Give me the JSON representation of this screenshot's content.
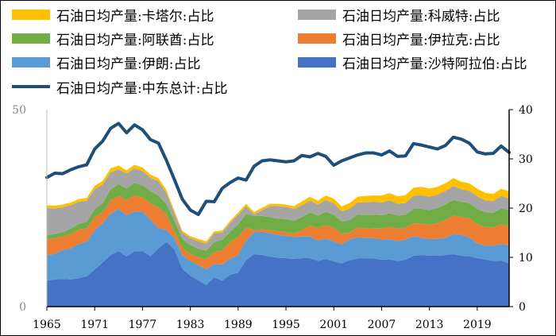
{
  "chart_data": {
    "type": "area",
    "stacked": true,
    "title": "",
    "xlabel": "",
    "ylabel": "",
    "x": [
      1965,
      1966,
      1967,
      1968,
      1969,
      1970,
      1971,
      1972,
      1973,
      1974,
      1975,
      1976,
      1977,
      1978,
      1979,
      1980,
      1981,
      1982,
      1983,
      1984,
      1985,
      1986,
      1987,
      1988,
      1989,
      1990,
      1991,
      1992,
      1993,
      1994,
      1995,
      1996,
      1997,
      1998,
      1999,
      2000,
      2001,
      2002,
      2003,
      2004,
      2005,
      2006,
      2007,
      2008,
      2009,
      2010,
      2011,
      2012,
      2013,
      2014,
      2015,
      2016,
      2017,
      2018,
      2019,
      2020,
      2021,
      2022,
      2023
    ],
    "x_ticks": [
      "1965",
      "1971",
      "1977",
      "1983",
      "1989",
      "1995",
      "2001",
      "2007",
      "2013",
      "2019"
    ],
    "y_left": {
      "range": [
        0,
        50
      ],
      "ticks": [
        "0",
        "50"
      ]
    },
    "y_right": {
      "range": [
        0,
        40
      ],
      "ticks": [
        "0",
        "10",
        "20",
        "30",
        "40"
      ]
    },
    "grid": false,
    "legend_position": "top",
    "series": [
      {
        "name": "石油日均产量:沙特阿拉伯:占比",
        "color": "#4472c4",
        "axis": "left",
        "values": [
          6.6,
          6.9,
          7.0,
          6.9,
          7.2,
          7.7,
          9.4,
          11.2,
          13.1,
          14.1,
          12.7,
          14.0,
          14.1,
          12.8,
          14.8,
          16.4,
          14.5,
          9.6,
          7.8,
          6.7,
          5.5,
          7.4,
          6.6,
          8.1,
          8.6,
          11.8,
          13.3,
          13.1,
          12.7,
          12.4,
          12.3,
          12.1,
          12.3,
          12.3,
          11.6,
          12.1,
          11.5,
          11.0,
          11.8,
          12.2,
          12.2,
          12.2,
          11.9,
          12.0,
          11.6,
          11.9,
          12.9,
          13.1,
          12.9,
          12.9,
          13.1,
          13.3,
          12.9,
          12.8,
          12.3,
          12.0,
          11.6,
          11.7,
          11.0
        ]
      },
      {
        "name": "石油日均产量:伊朗:占比",
        "color": "#5b9bd5",
        "axis": "left",
        "values": [
          6.4,
          6.5,
          7.4,
          7.9,
          8.7,
          8.8,
          10.0,
          10.0,
          10.5,
          10.7,
          10.5,
          10.2,
          10.0,
          9.3,
          5.1,
          3.0,
          2.9,
          3.5,
          3.8,
          3.8,
          4.0,
          3.4,
          4.1,
          4.0,
          4.5,
          5.0,
          5.6,
          5.9,
          5.9,
          5.8,
          5.7,
          5.6,
          5.5,
          5.5,
          5.2,
          5.2,
          5.1,
          4.8,
          5.3,
          5.4,
          5.3,
          5.2,
          5.1,
          5.1,
          5.0,
          5.1,
          5.0,
          4.4,
          4.2,
          4.3,
          4.4,
          5.1,
          5.3,
          4.8,
          3.7,
          3.5,
          3.9,
          4.2,
          4.5
        ]
      },
      {
        "name": "石油日均产量:伊拉克:占比",
        "color": "#ed7d31",
        "axis": "left",
        "values": [
          4.1,
          4.0,
          3.4,
          3.7,
          3.6,
          3.3,
          3.3,
          2.8,
          3.4,
          3.3,
          3.9,
          4.0,
          3.6,
          4.2,
          5.2,
          4.0,
          1.8,
          1.8,
          1.8,
          2.0,
          2.6,
          3.0,
          3.6,
          4.3,
          4.6,
          3.3,
          0.5,
          0.6,
          0.8,
          0.9,
          0.9,
          0.9,
          1.6,
          2.8,
          3.2,
          3.4,
          3.4,
          2.7,
          1.7,
          2.5,
          2.4,
          2.4,
          2.8,
          3.1,
          3.2,
          3.0,
          3.3,
          3.6,
          3.7,
          4.0,
          4.5,
          4.7,
          4.6,
          4.8,
          5.0,
          4.7,
          4.6,
          5.0,
          5.0
        ]
      },
      {
        "name": "石油日均产量:阿联酋:占比",
        "color": "#70ad47",
        "axis": "left",
        "values": [
          1.0,
          1.0,
          1.1,
          1.3,
          1.5,
          1.7,
          2.1,
          2.2,
          2.8,
          3.0,
          2.9,
          3.2,
          3.1,
          3.0,
          3.1,
          2.7,
          2.6,
          2.3,
          2.2,
          2.2,
          2.1,
          2.6,
          2.6,
          2.6,
          3.2,
          3.4,
          3.6,
          3.4,
          3.3,
          3.2,
          3.3,
          3.2,
          3.3,
          3.3,
          3.1,
          3.4,
          3.3,
          3.1,
          3.2,
          3.3,
          3.4,
          3.5,
          3.4,
          3.5,
          3.3,
          3.3,
          3.6,
          3.7,
          3.7,
          3.8,
          3.9,
          4.0,
          3.8,
          3.8,
          3.8,
          3.8,
          3.7,
          4.0,
          4.0
        ]
      },
      {
        "name": "石油日均产量:科威特:占比",
        "color": "#a5a5a5",
        "axis": "left",
        "values": [
          6.9,
          6.5,
          6.3,
          5.9,
          5.6,
          5.4,
          5.0,
          4.8,
          4.3,
          3.7,
          3.8,
          3.7,
          3.6,
          3.4,
          3.6,
          2.7,
          1.9,
          1.5,
          1.8,
          1.9,
          1.8,
          2.2,
          1.9,
          2.3,
          2.4,
          2.0,
          0.4,
          1.5,
          2.8,
          3.2,
          3.1,
          3.0,
          3.0,
          3.0,
          2.8,
          3.0,
          2.9,
          2.6,
          2.9,
          3.0,
          3.2,
          3.3,
          3.2,
          3.3,
          3.0,
          3.0,
          3.3,
          3.5,
          3.4,
          3.4,
          3.4,
          3.5,
          3.2,
          3.2,
          3.2,
          3.0,
          3.0,
          3.2,
          3.0
        ]
      },
      {
        "name": "石油日均产量:卡塔尔:占比",
        "color": "#ffc000",
        "axis": "left",
        "values": [
          0.7,
          0.7,
          0.7,
          0.7,
          0.7,
          0.7,
          0.9,
          0.9,
          1.0,
          1.0,
          0.8,
          0.9,
          0.9,
          0.8,
          0.8,
          0.8,
          0.6,
          0.5,
          0.5,
          0.6,
          0.6,
          0.5,
          0.5,
          0.5,
          0.6,
          0.6,
          0.6,
          0.6,
          0.6,
          0.6,
          0.6,
          0.7,
          1.0,
          1.0,
          1.0,
          1.1,
          1.2,
          1.2,
          1.4,
          1.5,
          1.6,
          1.6,
          1.8,
          1.8,
          1.9,
          2.0,
          2.1,
          2.1,
          2.1,
          2.0,
          2.0,
          2.0,
          1.9,
          1.9,
          1.9,
          1.9,
          1.8,
          1.8,
          1.8
        ]
      },
      {
        "name": "石油日均产量:中东总计:占比",
        "color": "#1f4e79",
        "axis": "right",
        "style": "line",
        "values": [
          26.2,
          27.1,
          27.0,
          27.8,
          28.4,
          28.8,
          32.0,
          33.6,
          36.2,
          37.2,
          35.3,
          36.9,
          35.9,
          33.9,
          33.2,
          29.7,
          25.8,
          21.8,
          19.6,
          18.7,
          21.4,
          21.3,
          24.0,
          25.2,
          26.1,
          25.7,
          28.5,
          29.6,
          29.8,
          29.6,
          29.4,
          29.6,
          30.7,
          30.4,
          31.1,
          30.5,
          28.7,
          29.6,
          30.2,
          30.8,
          31.2,
          31.2,
          30.8,
          31.6,
          30.5,
          30.6,
          33.1,
          32.8,
          32.4,
          32.0,
          32.7,
          34.4,
          34.0,
          33.2,
          31.4,
          31.0,
          31.1,
          32.6,
          31.3
        ]
      }
    ]
  }
}
